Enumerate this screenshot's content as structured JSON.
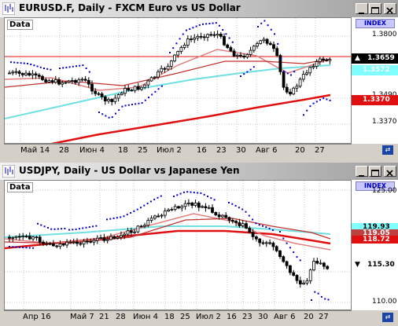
{
  "windows": [
    {
      "id": "eur",
      "title": "EURUSD.F, Daily - FXCM Euro vs US Dollar",
      "data_label": "Data",
      "index_label": "INDEX",
      "y_ticks": [
        "1.3800",
        "1.3659",
        "1.3370"
      ],
      "plain_ticks": [
        "1.3800",
        "1.3490",
        "1.3370"
      ],
      "price_tags": [
        {
          "text": "1.3659",
          "color": "#000000",
          "bg": "#ffffff",
          "arrow": true
        },
        {
          "text": "1.3572",
          "color": "#ffffff",
          "bg": "#80ffff"
        },
        {
          "text": "1.3370",
          "color": "#ffffff",
          "bg": "#e01010"
        }
      ],
      "x_labels": [
        "Май 14",
        "28",
        "Июн 4",
        "18",
        "25",
        "Июл 2",
        "16",
        "23",
        "30",
        "Авг 6",
        "20",
        "27"
      ]
    },
    {
      "id": "jpy",
      "title": "USDJPY, Daily - US Dollar vs Japanese Yen",
      "data_label": "Data",
      "index_label": "INDEX",
      "y_ticks": [
        "125.00",
        "115.30",
        "110.00"
      ],
      "price_tags": [
        {
          "text": "119.93",
          "color": "#000000",
          "bg": "#80ffff"
        },
        {
          "text": "119.05",
          "color": "#ffffff",
          "bg": "#c04040"
        },
        {
          "text": "118.72",
          "color": "#ffffff",
          "bg": "#e01010"
        },
        {
          "text": "115.30",
          "color": "#000000",
          "bg": "#ffffff",
          "arrow": true
        }
      ],
      "x_labels": [
        "Апр 16",
        "Май 7",
        "21",
        "28",
        "Июн 4",
        "18",
        "25",
        "Июл 2",
        "16",
        "23",
        "30",
        "Авг 6",
        "20",
        "27"
      ]
    }
  ],
  "colors": {
    "candle": "#000000",
    "psar": "#0000cc",
    "ma_fast": "#e08080",
    "ma_mid": "#c03030",
    "ma_slow": "#e01010",
    "ma_cyan": "#70e0e0",
    "hline": "#e01010"
  }
}
